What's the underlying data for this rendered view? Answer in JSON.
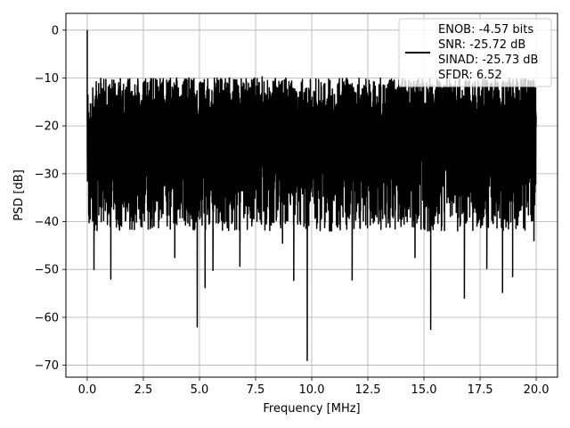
{
  "chart_data": {
    "type": "line",
    "xlabel": "Frequency [MHz]",
    "ylabel": "PSD [dB]",
    "xlim": [
      -0.95,
      20.95
    ],
    "ylim": [
      -72.5,
      3.5
    ],
    "xticks": [
      0.0,
      2.5,
      5.0,
      7.5,
      10.0,
      12.5,
      15.0,
      17.5,
      20.0
    ],
    "xtick_labels": [
      "0.0",
      "2.5",
      "5.0",
      "7.5",
      "10.0",
      "12.5",
      "15.0",
      "17.5",
      "20.0"
    ],
    "yticks": [
      0,
      -10,
      -20,
      -30,
      -40,
      -50,
      -60,
      -70
    ],
    "ytick_labels": [
      "0",
      "−10",
      "−20",
      "−30",
      "−40",
      "−50",
      "−60",
      "−70"
    ],
    "grid": true,
    "legend_position": "top-right",
    "series": [
      {
        "name": "ENOB: -4.57 bits\nSNR: -25.72 dB\nSINAD: -25.73 dB\nSFDR: 6.52",
        "color": "#000000",
        "x_range": [
          0.0,
          20.0
        ],
        "mean_level": -24,
        "upper_envelope": -10,
        "lower_envelope": -40,
        "peaks": [
          {
            "x": 0.0,
            "y": 0
          }
        ],
        "dips": [
          {
            "x": 0.3,
            "y": -50.0
          },
          {
            "x": 1.05,
            "y": -52.0
          },
          {
            "x": 3.9,
            "y": -47.5
          },
          {
            "x": 4.9,
            "y": -62.0
          },
          {
            "x": 5.25,
            "y": -53.8
          },
          {
            "x": 5.6,
            "y": -50.2
          },
          {
            "x": 6.8,
            "y": -49.3
          },
          {
            "x": 8.7,
            "y": -44.5
          },
          {
            "x": 9.2,
            "y": -52.3
          },
          {
            "x": 9.8,
            "y": -69.0
          },
          {
            "x": 11.8,
            "y": -52.2
          },
          {
            "x": 14.6,
            "y": -47.5
          },
          {
            "x": 15.3,
            "y": -62.5
          },
          {
            "x": 16.8,
            "y": -56.0
          },
          {
            "x": 17.8,
            "y": -49.8
          },
          {
            "x": 18.5,
            "y": -54.8
          },
          {
            "x": 18.95,
            "y": -51.5
          },
          {
            "x": 19.9,
            "y": -44.0
          }
        ]
      }
    ],
    "legend": {
      "lines": [
        "ENOB: -4.57 bits",
        "SNR: -25.72 dB",
        "SINAD: -25.73 dB",
        "SFDR: 6.52"
      ]
    }
  }
}
